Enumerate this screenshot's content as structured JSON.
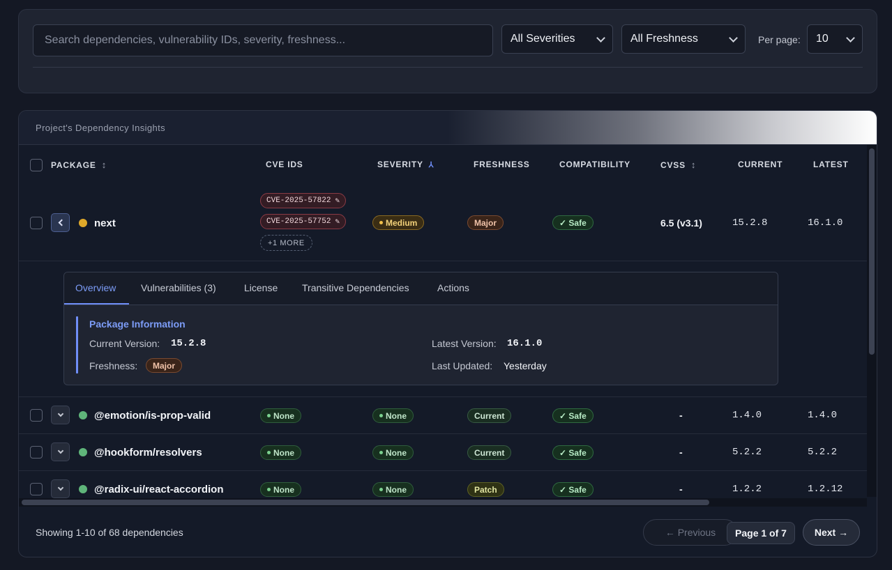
{
  "filters": {
    "search_placeholder": "Search dependencies, vulnerability IDs, severity, freshness...",
    "severity": "All Severities",
    "freshness": "All Freshness",
    "per_page_label": "Per page:",
    "per_page": "10"
  },
  "table": {
    "title": "Project's Dependency Insights",
    "columns": [
      "PACKAGE",
      "CVE IDS",
      "SEVERITY",
      "FRESHNESS",
      "COMPATIBILITY",
      "CVSS",
      "CURRENT",
      "LATEST"
    ],
    "rows": [
      {
        "name": "next",
        "status_color": "#e0a92a",
        "cves": [
          "CVE-2025-57822",
          "CVE-2025-57752"
        ],
        "more": "+1 MORE",
        "severity": "Medium",
        "freshness": "Major",
        "compat": "✓ Safe",
        "cvss": "6.5 (v3.1)",
        "current": "15.2.8",
        "latest": "16.1.0"
      },
      {
        "name": "@emotion/is-prop-valid",
        "status_color": "#5fb57a",
        "cve": "None",
        "severity": "None",
        "freshness": "Current",
        "compat": "✓ Safe",
        "cvss": "-",
        "current": "1.4.0",
        "latest": "1.4.0"
      },
      {
        "name": "@hookform/resolvers",
        "status_color": "#5fb57a",
        "cve": "None",
        "severity": "None",
        "freshness": "Current",
        "compat": "✓ Safe",
        "cvss": "-",
        "current": "5.2.2",
        "latest": "5.2.2"
      },
      {
        "name": "@radix-ui/react-accordion",
        "status_color": "#5fb57a",
        "cve": "None",
        "severity": "None",
        "freshness": "Patch",
        "compat": "✓ Safe",
        "cvss": "-",
        "current": "1.2.2",
        "latest": "1.2.12"
      }
    ]
  },
  "detail": {
    "tabs": [
      "Overview",
      "Vulnerabilities (3)",
      "License",
      "Transitive Dependencies",
      "Actions"
    ],
    "active_tab": "Overview",
    "section_title": "Package Information",
    "current_version_label": "Current Version:",
    "current_version": "15.2.8",
    "latest_version_label": "Latest Version:",
    "latest_version": "16.1.0",
    "freshness_label": "Freshness:",
    "freshness": "Major",
    "last_updated_label": "Last Updated:",
    "last_updated": "Yesterday"
  },
  "footer": {
    "showing": "Showing 1-10 of 68 dependencies",
    "previous": "← Previous",
    "page": "Page 1 of 7",
    "next": "Next →"
  }
}
